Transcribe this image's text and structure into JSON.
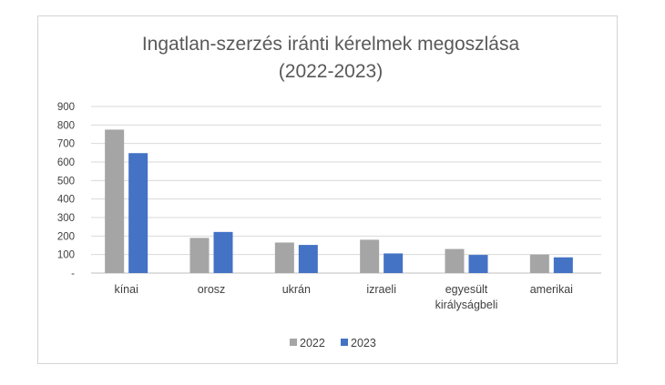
{
  "chart_data": {
    "type": "bar",
    "title_lines": [
      "Ingatlan-szerzés iránti kérelmek megoszlása",
      "(2022-2023)"
    ],
    "categories": [
      [
        "kínai"
      ],
      [
        "orosz"
      ],
      [
        "ukrán"
      ],
      [
        "izraeli"
      ],
      [
        "egyesült",
        "királyságbeli"
      ],
      [
        "amerikai"
      ]
    ],
    "series": [
      {
        "name": "2022",
        "values": [
          775,
          190,
          165,
          180,
          130,
          100
        ],
        "color": "#a5a5a5"
      },
      {
        "name": "2023",
        "values": [
          648,
          222,
          152,
          106,
          98,
          85
        ],
        "color": "#4472c4"
      }
    ],
    "y_ticks": [
      "-",
      "100",
      "200",
      "300",
      "400",
      "500",
      "600",
      "700",
      "800",
      "900"
    ],
    "ylim": [
      0,
      900
    ],
    "grid": true,
    "legend": "bottom"
  }
}
